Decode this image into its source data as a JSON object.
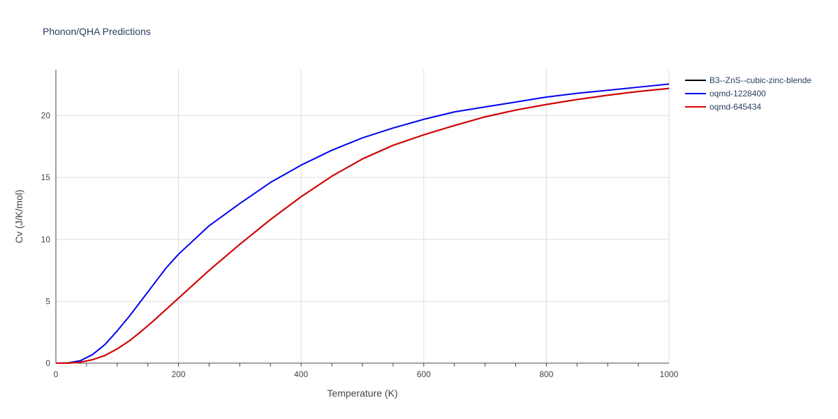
{
  "chart_data": {
    "type": "line",
    "title": "Phonon/QHA Predictions",
    "xlabel": "Temperature (K)",
    "ylabel": "Cv (J/K/mol)",
    "xlim": [
      0,
      1000
    ],
    "ylim": [
      0,
      23.7
    ],
    "x_ticks": [
      "0",
      "200",
      "400",
      "600",
      "800",
      "1000"
    ],
    "y_ticks": [
      "0",
      "5",
      "10",
      "15",
      "20"
    ],
    "grid": true,
    "legend_position": "top-right",
    "series": [
      {
        "name": "B3--ZnS--cubic-zinc-blende",
        "color": "#000000",
        "x": [
          0,
          20,
          40,
          60,
          80,
          100,
          120,
          140,
          160,
          180,
          200,
          250,
          300,
          350,
          400,
          450,
          500,
          550,
          600,
          650,
          700,
          750,
          800,
          850,
          900,
          950,
          1000
        ],
        "y": [
          0,
          0.01,
          0.08,
          0.28,
          0.62,
          1.15,
          1.8,
          2.6,
          3.45,
          4.35,
          5.25,
          7.5,
          9.6,
          11.6,
          13.45,
          15.1,
          16.5,
          17.6,
          18.45,
          19.2,
          19.9,
          20.45,
          20.9,
          21.3,
          21.65,
          21.95,
          22.2
        ]
      },
      {
        "name": "oqmd-1228400",
        "color": "#0000ee",
        "x": [
          0,
          20,
          40,
          60,
          80,
          100,
          120,
          140,
          160,
          180,
          200,
          250,
          300,
          350,
          400,
          450,
          500,
          550,
          600,
          650,
          700,
          750,
          800,
          850,
          900,
          950,
          1000
        ],
        "y": [
          0,
          0.02,
          0.2,
          0.7,
          1.5,
          2.6,
          3.8,
          5.1,
          6.4,
          7.7,
          8.8,
          11.1,
          12.9,
          14.6,
          16.0,
          17.2,
          18.2,
          19.0,
          19.7,
          20.3,
          20.7,
          21.1,
          21.5,
          21.8,
          22.05,
          22.3,
          22.55
        ]
      },
      {
        "name": "oqmd-645434",
        "color": "#dd0000",
        "x": [
          0,
          20,
          40,
          60,
          80,
          100,
          120,
          140,
          160,
          180,
          200,
          250,
          300,
          350,
          400,
          450,
          500,
          550,
          600,
          650,
          700,
          750,
          800,
          850,
          900,
          950,
          1000
        ],
        "y": [
          0,
          0.01,
          0.08,
          0.28,
          0.62,
          1.15,
          1.8,
          2.6,
          3.45,
          4.35,
          5.25,
          7.5,
          9.6,
          11.6,
          13.45,
          15.1,
          16.5,
          17.6,
          18.45,
          19.2,
          19.9,
          20.45,
          20.9,
          21.3,
          21.65,
          21.95,
          22.2
        ]
      }
    ]
  }
}
